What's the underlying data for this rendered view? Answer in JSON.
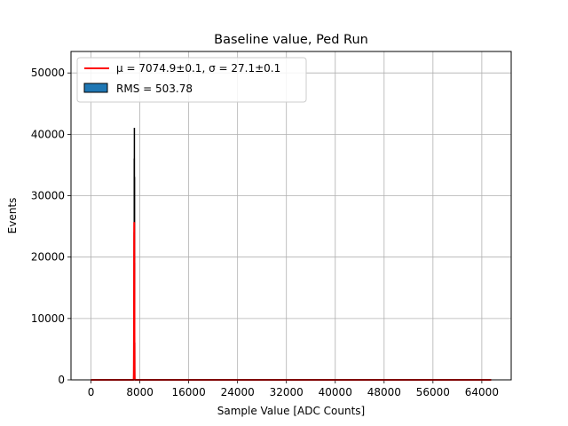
{
  "chart_data": {
    "type": "bar",
    "title": "Baseline value, Ped Run",
    "xlabel": "Sample Value [ADC Counts]",
    "ylabel": "Events",
    "xlim": [
      -3277,
      68813
    ],
    "ylim": [
      0,
      53500
    ],
    "xticks": [
      0,
      8000,
      16000,
      24000,
      32000,
      40000,
      48000,
      56000,
      64000
    ],
    "yticks": [
      0,
      10000,
      20000,
      30000,
      40000,
      50000
    ],
    "grid": true,
    "legend_position": "top-left",
    "histogram": {
      "name": "RMS = 503.78",
      "color": "#1f77b4",
      "edge_color": "#000000",
      "x": [
        7010,
        7030,
        7050,
        7070,
        7090,
        7110,
        7130
      ],
      "values": [
        9000,
        24000,
        36000,
        41000,
        33000,
        19000,
        6000
      ]
    },
    "fit": {
      "name": "μ = 7074.9±0.1, σ = 27.1±0.1",
      "color": "#ff0000",
      "peak": 25700,
      "mu": 7074.9,
      "sigma": 27.1,
      "x_range": [
        0,
        65535
      ]
    }
  }
}
